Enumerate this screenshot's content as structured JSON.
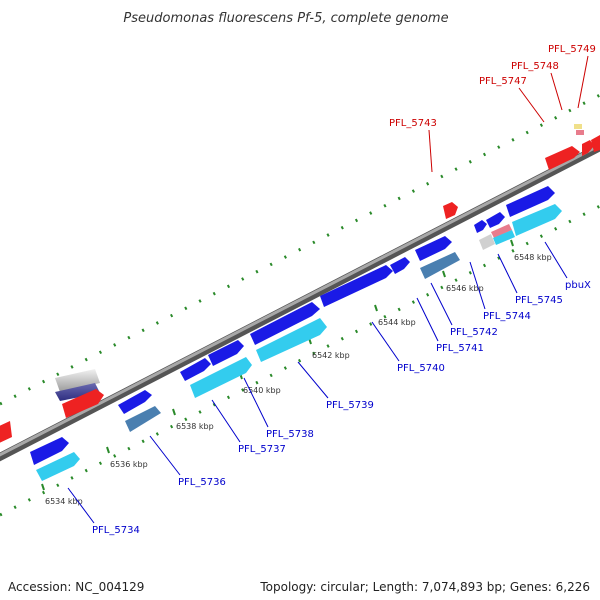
{
  "title": "Pseudomonas fluorescens Pf-5, complete genome",
  "footer": {
    "accession": "Accession: NC_004129",
    "topology": "Topology: circular; Length: 7,074,893 bp; Genes: 6,226"
  },
  "colors": {
    "backbone": "#888888",
    "forward_gene": "#1a1ae6",
    "forward_label": "#0000cc",
    "cds_cyan": "#33ccee",
    "steel": "#4a7fb0",
    "reverse_gene": "#ee2222",
    "reverse_label": "#cc0000",
    "tick_green": "#228822"
  },
  "scale_ticks": [
    "6534 kbp",
    "6536 kbp",
    "6538 kbp",
    "6540 kbp",
    "6542 kbp",
    "6544 kbp",
    "6546 kbp",
    "6548 kbp"
  ],
  "forward_labels": [
    "PFL_5734",
    "PFL_5736",
    "PFL_5737",
    "PFL_5738",
    "PFL_5739",
    "PFL_5740",
    "PFL_5741",
    "PFL_5742",
    "PFL_5744",
    "PFL_5745",
    "pbuX"
  ],
  "reverse_labels": [
    "PFL_5743",
    "PFL_5747",
    "PFL_5748",
    "PFL_5749"
  ]
}
